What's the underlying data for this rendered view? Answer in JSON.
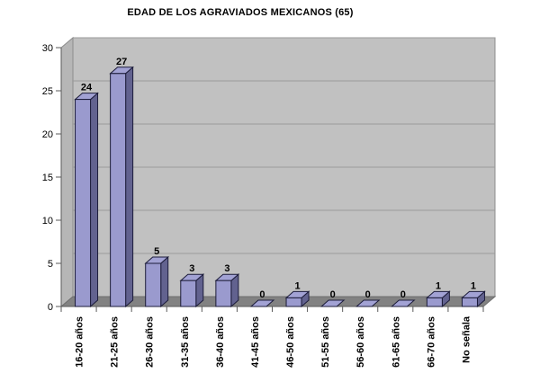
{
  "chart_data": {
    "type": "bar",
    "style": "3d-column",
    "title": "EDAD DE LOS AGRAVIADOS MEXICANOS (65)",
    "categories": [
      "16-20 años",
      "21-25 años",
      "26-30 años",
      "31-35 años",
      "36-40 años",
      "41-45 años",
      "46-50 años",
      "51-55 años",
      "56-60 años",
      "61-65 años",
      "66-70 años",
      "No señala"
    ],
    "values": [
      24,
      27,
      5,
      3,
      3,
      0,
      1,
      0,
      0,
      0,
      1,
      1
    ],
    "value_labels": [
      "24",
      "27",
      "5",
      "3",
      "3",
      "0",
      "1",
      "0",
      "0",
      "0",
      "1",
      "1"
    ],
    "xlabel": "",
    "ylabel": "",
    "ylim": [
      0,
      30
    ],
    "ytick_interval": 5,
    "yticks": [
      0,
      5,
      10,
      15,
      20,
      25,
      30
    ],
    "ytick_labels": [
      "0",
      "5",
      "10",
      "15",
      "20",
      "25",
      "30"
    ],
    "grid": true,
    "legend": false,
    "colors": {
      "bar_front": "#9a9ace",
      "bar_top": "#a2a2d4",
      "bar_side": "#62628f",
      "bar_outline": "#1c1c3a",
      "back_wall": "#c1c1c1",
      "left_wall": "#b6b6b6",
      "floor": "#828282",
      "gridline": "#9a9a9a",
      "wall_border": "#8c8c8c",
      "axis_line": "#5a5a5a",
      "text": "#000000",
      "background": "#ffffff"
    }
  }
}
